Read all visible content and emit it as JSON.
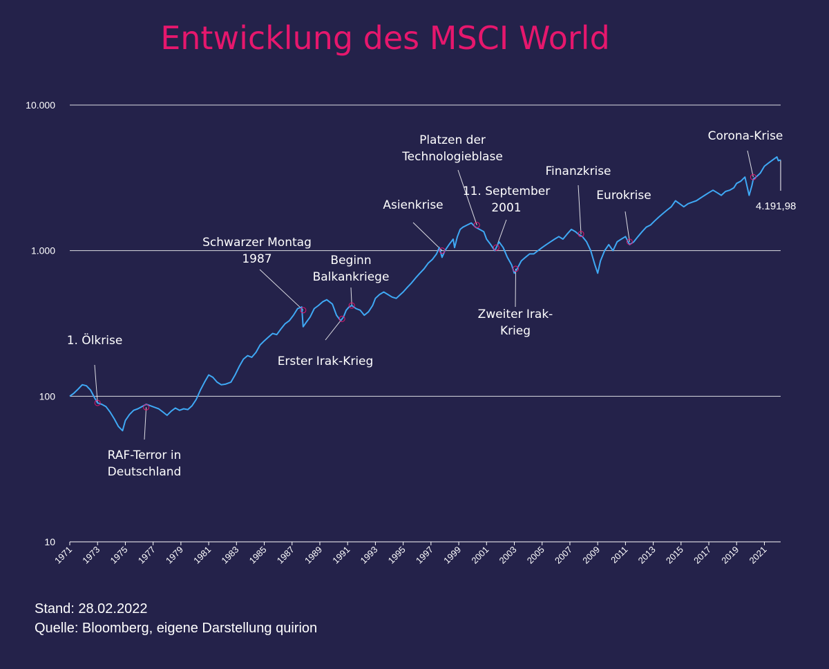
{
  "title": "Entwicklung des MSCI World",
  "footer": {
    "stand": "Stand: 28.02.2022",
    "source": "Quelle: Bloomberg, eigene Darstellung quirion"
  },
  "colors": {
    "background": "#24224a",
    "title": "#e6176d",
    "line": "#3fa9f5",
    "marker": "#e6176d",
    "text": "#ffffff",
    "grid": "#ffffff"
  },
  "chart_data": {
    "type": "line",
    "title": "Entwicklung des MSCI World",
    "xlabel": "",
    "ylabel": "",
    "yscale": "log",
    "ylim": [
      10,
      10000
    ],
    "xlim": [
      1971.0,
      2022.17
    ],
    "grid": "horizontal",
    "y_ticks": [
      {
        "value": 10,
        "label": "10"
      },
      {
        "value": 100,
        "label": "100"
      },
      {
        "value": 1000,
        "label": "1.000"
      },
      {
        "value": 10000,
        "label": "10.000"
      }
    ],
    "x_ticks": [
      "1971",
      "1973",
      "1975",
      "1977",
      "1979",
      "1981",
      "1983",
      "1985",
      "1987",
      "1989",
      "1991",
      "1993",
      "1995",
      "1997",
      "1999",
      "2001",
      "2003",
      "2005",
      "2007",
      "2009",
      "2011",
      "2013",
      "2015",
      "2017",
      "2019",
      "2021"
    ],
    "series": [
      {
        "x": [
          1971.0,
          1971.3,
          1971.6,
          1971.9,
          1972.2,
          1972.5,
          1972.8,
          1973.0,
          1973.3,
          1973.6,
          1973.9,
          1974.2,
          1974.5,
          1974.8,
          1975.0,
          1975.3,
          1975.6,
          1975.9,
          1976.2,
          1976.5,
          1976.8,
          1977.1,
          1977.4,
          1977.7,
          1978.0,
          1978.3,
          1978.6,
          1978.9,
          1979.2,
          1979.5,
          1979.8,
          1980.1,
          1980.4,
          1980.7,
          1981.0,
          1981.3,
          1981.6,
          1981.9,
          1982.2,
          1982.6,
          1982.9,
          1983.2,
          1983.5,
          1983.8,
          1984.1,
          1984.4,
          1984.7,
          1985.0,
          1985.3,
          1985.6,
          1985.9,
          1986.2,
          1986.5,
          1986.8,
          1987.1,
          1987.4,
          1987.7,
          1987.8,
          1988.0,
          1988.3,
          1988.6,
          1988.9,
          1989.2,
          1989.5,
          1989.9,
          1990.2,
          1990.5,
          1990.7,
          1990.9,
          1991.1,
          1991.3,
          1991.6,
          1991.9,
          1992.2,
          1992.5,
          1992.8,
          1993.0,
          1993.3,
          1993.6,
          1993.9,
          1994.2,
          1994.5,
          1994.8,
          1995.0,
          1995.3,
          1995.6,
          1995.9,
          1996.2,
          1996.5,
          1996.8,
          1997.1,
          1997.4,
          1997.6,
          1997.8,
          1998.0,
          1998.3,
          1998.6,
          1998.7,
          1998.9,
          1999.1,
          1999.3,
          1999.6,
          1999.9,
          2000.2,
          2000.5,
          2000.8,
          2001.0,
          2001.3,
          2001.6,
          2001.7,
          2001.9,
          2002.2,
          2002.5,
          2002.8,
          2003.0,
          2003.2,
          2003.5,
          2003.8,
          2004.1,
          2004.4,
          2004.7,
          2005.0,
          2005.3,
          2005.6,
          2005.9,
          2006.2,
          2006.5,
          2006.8,
          2007.1,
          2007.4,
          2007.6,
          2007.9,
          2008.2,
          2008.5,
          2008.8,
          2009.0,
          2009.2,
          2009.5,
          2009.8,
          2010.1,
          2010.4,
          2010.7,
          2011.0,
          2011.3,
          2011.6,
          2011.9,
          2012.2,
          2012.5,
          2012.8,
          2013.1,
          2013.4,
          2013.7,
          2014.0,
          2014.3,
          2014.6,
          2014.9,
          2015.2,
          2015.5,
          2015.8,
          2016.1,
          2016.4,
          2016.7,
          2017.0,
          2017.3,
          2017.6,
          2017.9,
          2018.2,
          2018.5,
          2018.8,
          2019.0,
          2019.3,
          2019.6,
          2019.9,
          2020.1,
          2020.2,
          2020.4,
          2020.7,
          2021.0,
          2021.3,
          2021.6,
          2021.9,
          2022.0,
          2022.17
        ],
        "values": [
          100,
          105,
          112,
          120,
          118,
          110,
          97,
          90,
          88,
          85,
          78,
          70,
          62,
          58,
          68,
          75,
          80,
          82,
          85,
          88,
          86,
          84,
          82,
          78,
          74,
          79,
          83,
          80,
          82,
          81,
          86,
          95,
          110,
          125,
          140,
          135,
          125,
          120,
          121,
          125,
          140,
          160,
          180,
          190,
          185,
          200,
          225,
          240,
          255,
          270,
          265,
          290,
          315,
          330,
          360,
          400,
          410,
          300,
          320,
          350,
          400,
          420,
          445,
          460,
          430,
          360,
          330,
          350,
          390,
          410,
          420,
          400,
          390,
          360,
          380,
          420,
          470,
          500,
          520,
          500,
          480,
          470,
          500,
          520,
          560,
          600,
          650,
          700,
          750,
          820,
          870,
          950,
          1050,
          900,
          1000,
          1100,
          1200,
          1050,
          1250,
          1400,
          1450,
          1500,
          1550,
          1450,
          1400,
          1350,
          1200,
          1100,
          1000,
          1050,
          1150,
          1050,
          900,
          800,
          700,
          750,
          850,
          900,
          950,
          950,
          1000,
          1050,
          1100,
          1150,
          1200,
          1250,
          1200,
          1300,
          1400,
          1350,
          1300,
          1250,
          1150,
          1000,
          800,
          700,
          850,
          1000,
          1100,
          1000,
          1150,
          1200,
          1250,
          1100,
          1150,
          1250,
          1350,
          1450,
          1500,
          1600,
          1700,
          1800,
          1900,
          2000,
          2200,
          2100,
          2000,
          2100,
          2150,
          2200,
          2300,
          2400,
          2500,
          2600,
          2500,
          2400,
          2550,
          2600,
          2700,
          2900,
          3000,
          3200,
          2400,
          2800,
          3100,
          3200,
          3400,
          3800,
          4000,
          4200,
          4400,
          4150,
          4191.98
        ]
      }
    ],
    "end_label": "4.191,98",
    "annotations": [
      {
        "text": "1. Ölkrise",
        "x": 1973.0,
        "y": 90
      },
      {
        "text": "RAF-Terror in Deutschland",
        "x": 1976.5,
        "y": 84
      },
      {
        "text": "Schwarzer Montag 1987",
        "x": 1987.8,
        "y": 390
      },
      {
        "text": "Erster Irak-Krieg",
        "x": 1990.6,
        "y": 340
      },
      {
        "text": "Beginn Balkankriege",
        "x": 1991.3,
        "y": 420
      },
      {
        "text": "Asienkrise",
        "x": 1997.8,
        "y": 1000
      },
      {
        "text": "Platzen der Technologieblase",
        "x": 2000.3,
        "y": 1500
      },
      {
        "text": "11. September 2001",
        "x": 2001.7,
        "y": 1050
      },
      {
        "text": "Zweiter Irak-Krieg",
        "x": 2003.1,
        "y": 750
      },
      {
        "text": "Finanzkrise",
        "x": 2007.8,
        "y": 1300
      },
      {
        "text": "Eurokrise",
        "x": 2011.3,
        "y": 1150
      },
      {
        "text": "Corona-Krise",
        "x": 2020.2,
        "y": 3200
      }
    ]
  }
}
